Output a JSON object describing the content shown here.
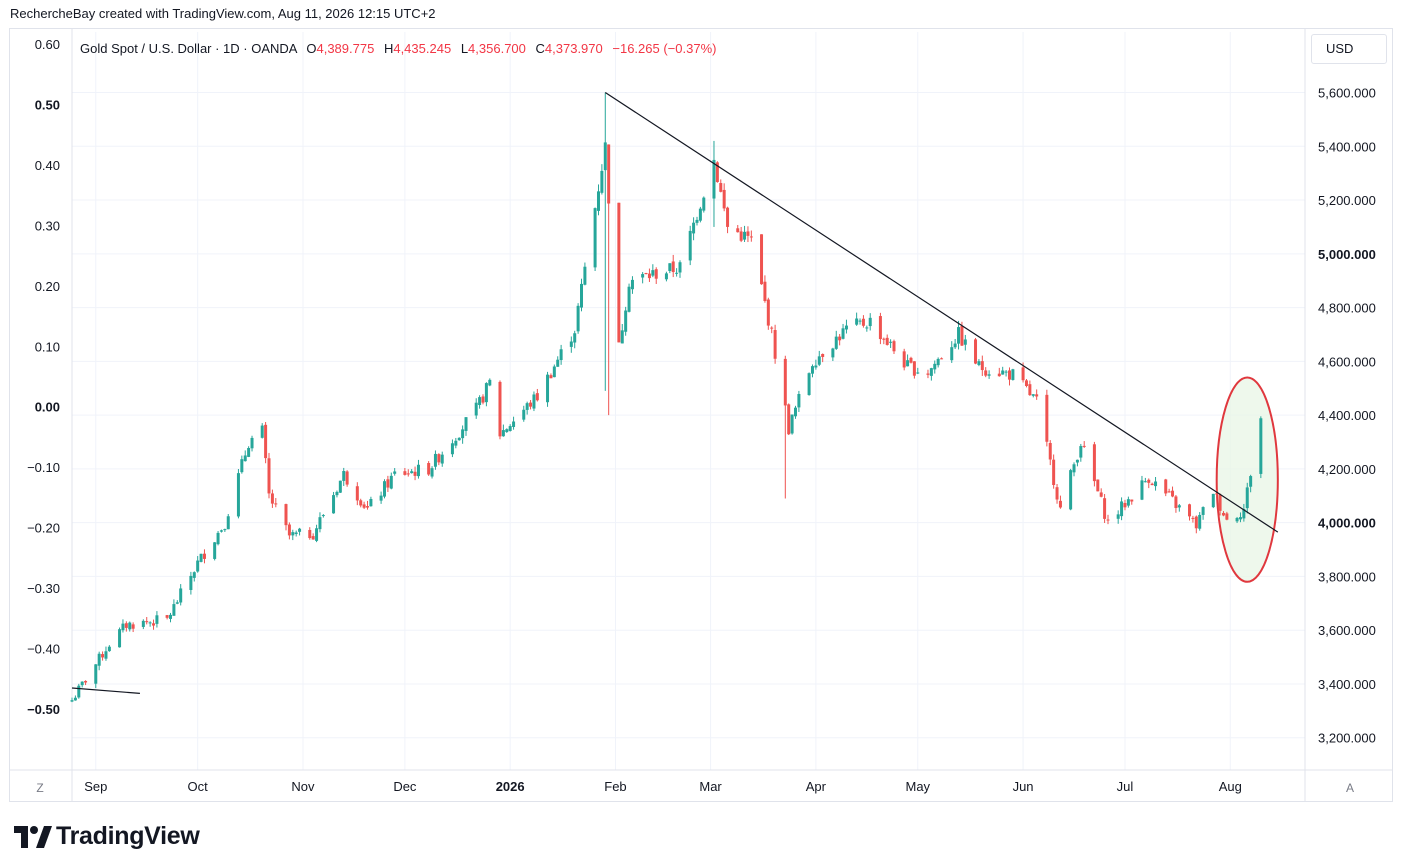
{
  "header": {
    "attribution": "RechercheBay created with TradingView.com, Aug 11, 2026 12:15 UTC+2"
  },
  "legend": {
    "symbol": "Gold Spot / U.S. Dollar · 1D · OANDA",
    "o_label": "O",
    "o_value": "4,389.775",
    "h_label": "H",
    "h_value": "4,435.245",
    "l_label": "L",
    "l_value": "4,356.700",
    "c_label": "C",
    "c_value": "4,373.970",
    "change": "−16.265 (−0.37%)"
  },
  "currency_button": "USD",
  "corner_left": "Z",
  "corner_right": "A",
  "brand": {
    "name": "TradingView"
  },
  "colors": {
    "up": "#26a69a",
    "down": "#ef5350",
    "highlight_stroke": "#e0383e",
    "highlight_fill": "#e8f5e6",
    "trendline": "#131722"
  },
  "chart_data": {
    "type": "candlestick",
    "title": "",
    "right_axis": {
      "ylim": [
        3080,
        5840
      ],
      "ticks": [
        {
          "value": 3200,
          "label": "3,200.000",
          "bold": false
        },
        {
          "value": 3400,
          "label": "3,400.000",
          "bold": false
        },
        {
          "value": 3600,
          "label": "3,600.000",
          "bold": false
        },
        {
          "value": 3800,
          "label": "3,800.000",
          "bold": false
        },
        {
          "value": 4000,
          "label": "4,000.000",
          "bold": true
        },
        {
          "value": 4200,
          "label": "4,200.000",
          "bold": false
        },
        {
          "value": 4400,
          "label": "4,400.000",
          "bold": false
        },
        {
          "value": 4600,
          "label": "4,600.000",
          "bold": false
        },
        {
          "value": 4800,
          "label": "4,800.000",
          "bold": false
        },
        {
          "value": 5000,
          "label": "5,000.000",
          "bold": true
        },
        {
          "value": 5200,
          "label": "5,200.000",
          "bold": false
        },
        {
          "value": 5400,
          "label": "5,400.000",
          "bold": false
        },
        {
          "value": 5600,
          "label": "5,600.000",
          "bold": false
        }
      ]
    },
    "left_axis": {
      "ticks": [
        {
          "value": 0.6,
          "label": "0.60",
          "bold": false
        },
        {
          "value": 0.5,
          "label": "0.50",
          "bold": true
        },
        {
          "value": 0.4,
          "label": "0.40",
          "bold": false
        },
        {
          "value": 0.3,
          "label": "0.30",
          "bold": false
        },
        {
          "value": 0.2,
          "label": "0.20",
          "bold": false
        },
        {
          "value": 0.1,
          "label": "0.10",
          "bold": false
        },
        {
          "value": 0.0,
          "label": "0.00",
          "bold": true
        },
        {
          "value": -0.1,
          "label": "−0.10",
          "bold": false
        },
        {
          "value": -0.2,
          "label": "−0.20",
          "bold": false
        },
        {
          "value": -0.3,
          "label": "−0.30",
          "bold": false
        },
        {
          "value": -0.4,
          "label": "−0.40",
          "bold": false
        },
        {
          "value": -0.5,
          "label": "−0.50",
          "bold": true
        }
      ]
    },
    "x_axis": {
      "start": "2025-08-25",
      "end": "2026-08-23",
      "ticks": [
        {
          "date": "2025-09-01",
          "label": "Sep",
          "bold": false
        },
        {
          "date": "2025-10-01",
          "label": "Oct",
          "bold": false
        },
        {
          "date": "2025-11-01",
          "label": "Nov",
          "bold": false
        },
        {
          "date": "2025-12-01",
          "label": "Dec",
          "bold": false
        },
        {
          "date": "2026-01-01",
          "label": "2026",
          "bold": true
        },
        {
          "date": "2026-02-01",
          "label": "Feb",
          "bold": false
        },
        {
          "date": "2026-03-01",
          "label": "Mar",
          "bold": false
        },
        {
          "date": "2026-04-01",
          "label": "Apr",
          "bold": false
        },
        {
          "date": "2026-05-01",
          "label": "May",
          "bold": false
        },
        {
          "date": "2026-06-01",
          "label": "Jun",
          "bold": false
        },
        {
          "date": "2026-07-01",
          "label": "Jul",
          "bold": false
        },
        {
          "date": "2026-08-01",
          "label": "Aug",
          "bold": false
        }
      ]
    },
    "price_path": [
      [
        "2025-08-25",
        3340
      ],
      [
        "2025-09-05",
        3550
      ],
      [
        "2025-09-10",
        3620
      ],
      [
        "2025-09-22",
        3640
      ],
      [
        "2025-10-01",
        3850
      ],
      [
        "2025-10-09",
        4000
      ],
      [
        "2025-10-16",
        4300
      ],
      [
        "2025-10-20",
        4340
      ],
      [
        "2025-10-22",
        4100
      ],
      [
        "2025-10-28",
        3950
      ],
      [
        "2025-11-04",
        3960
      ],
      [
        "2025-11-13",
        4180
      ],
      [
        "2025-11-20",
        4050
      ],
      [
        "2025-11-28",
        4180
      ],
      [
        "2025-12-08",
        4200
      ],
      [
        "2025-12-22",
        4420
      ],
      [
        "2025-12-26",
        4520
      ],
      [
        "2025-12-29",
        4330
      ],
      [
        "2026-01-09",
        4470
      ],
      [
        "2026-01-20",
        4720
      ],
      [
        "2026-01-29",
        5400
      ],
      [
        "2026-02-02",
        4650
      ],
      [
        "2026-02-05",
        4900
      ],
      [
        "2026-02-20",
        4950
      ],
      [
        "2026-03-02",
        5350
      ],
      [
        "2026-03-06",
        5100
      ],
      [
        "2026-03-13",
        5050
      ],
      [
        "2026-03-19",
        4700
      ],
      [
        "2026-03-24",
        4350
      ],
      [
        "2026-03-31",
        4600
      ],
      [
        "2026-04-10",
        4720
      ],
      [
        "2026-04-17",
        4750
      ],
      [
        "2026-04-28",
        4580
      ],
      [
        "2026-05-04",
        4560
      ],
      [
        "2026-05-13",
        4700
      ],
      [
        "2026-05-19",
        4580
      ],
      [
        "2026-05-29",
        4550
      ],
      [
        "2026-06-05",
        4450
      ],
      [
        "2026-06-12",
        4050
      ],
      [
        "2026-06-18",
        4300
      ],
      [
        "2026-06-26",
        4000
      ],
      [
        "2026-07-08",
        4170
      ],
      [
        "2026-07-22",
        3990
      ],
      [
        "2026-07-27",
        4120
      ],
      [
        "2026-07-31",
        4010
      ],
      [
        "2026-08-05",
        4050
      ],
      [
        "2026-08-10",
        4390
      ]
    ],
    "spikes": [
      [
        "2026-01-29",
        5600,
        4490
      ],
      [
        "2026-01-30",
        5380,
        4400
      ],
      [
        "2026-03-02",
        5420,
        5100
      ],
      [
        "2026-03-23",
        4420,
        4090
      ]
    ],
    "trendlines": [
      {
        "from": [
          "2026-01-29",
          5600
        ],
        "to": [
          "2026-08-15",
          3965
        ]
      },
      {
        "from": [
          "2025-08-25",
          3385
        ],
        "to": [
          "2025-09-14",
          3365
        ]
      }
    ],
    "highlight_ellipse": {
      "center": [
        "2026-08-06",
        4160
      ],
      "date_radius_days": 9,
      "price_radius": 380
    }
  }
}
